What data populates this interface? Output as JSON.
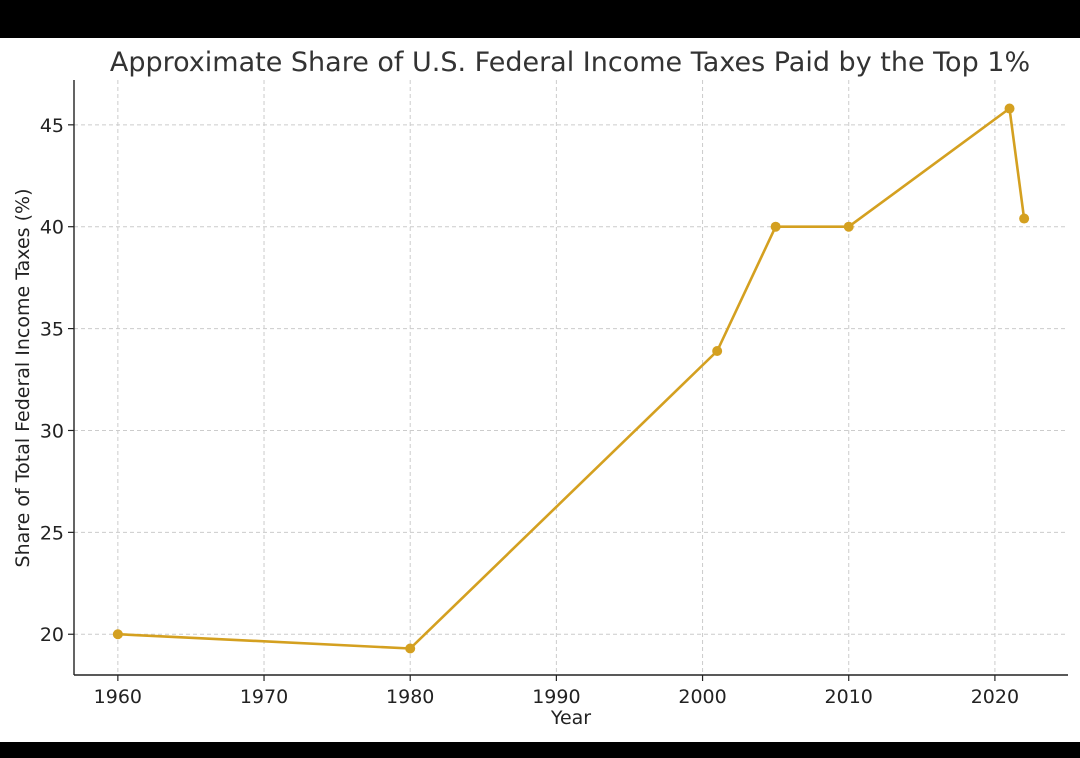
{
  "chart_data": {
    "type": "line",
    "title": "Approximate Share of U.S. Federal Income Taxes Paid by the Top 1%",
    "xlabel": "Year",
    "ylabel": "Share of Total Federal Income Taxes (%)",
    "x": [
      1960,
      1980,
      2001,
      2005,
      2010,
      2021,
      2022
    ],
    "series": [
      {
        "values": [
          20.0,
          19.3,
          33.9,
          40.0,
          40.0,
          45.8,
          40.4
        ]
      }
    ],
    "xlim": [
      1957,
      2025
    ],
    "ylim": [
      18,
      47.2
    ],
    "xticks": [
      1960,
      1970,
      1980,
      1990,
      2000,
      2010,
      2020
    ],
    "yticks": [
      20,
      25,
      30,
      35,
      40,
      45
    ],
    "grid": true,
    "line_color": "#D4A020"
  }
}
